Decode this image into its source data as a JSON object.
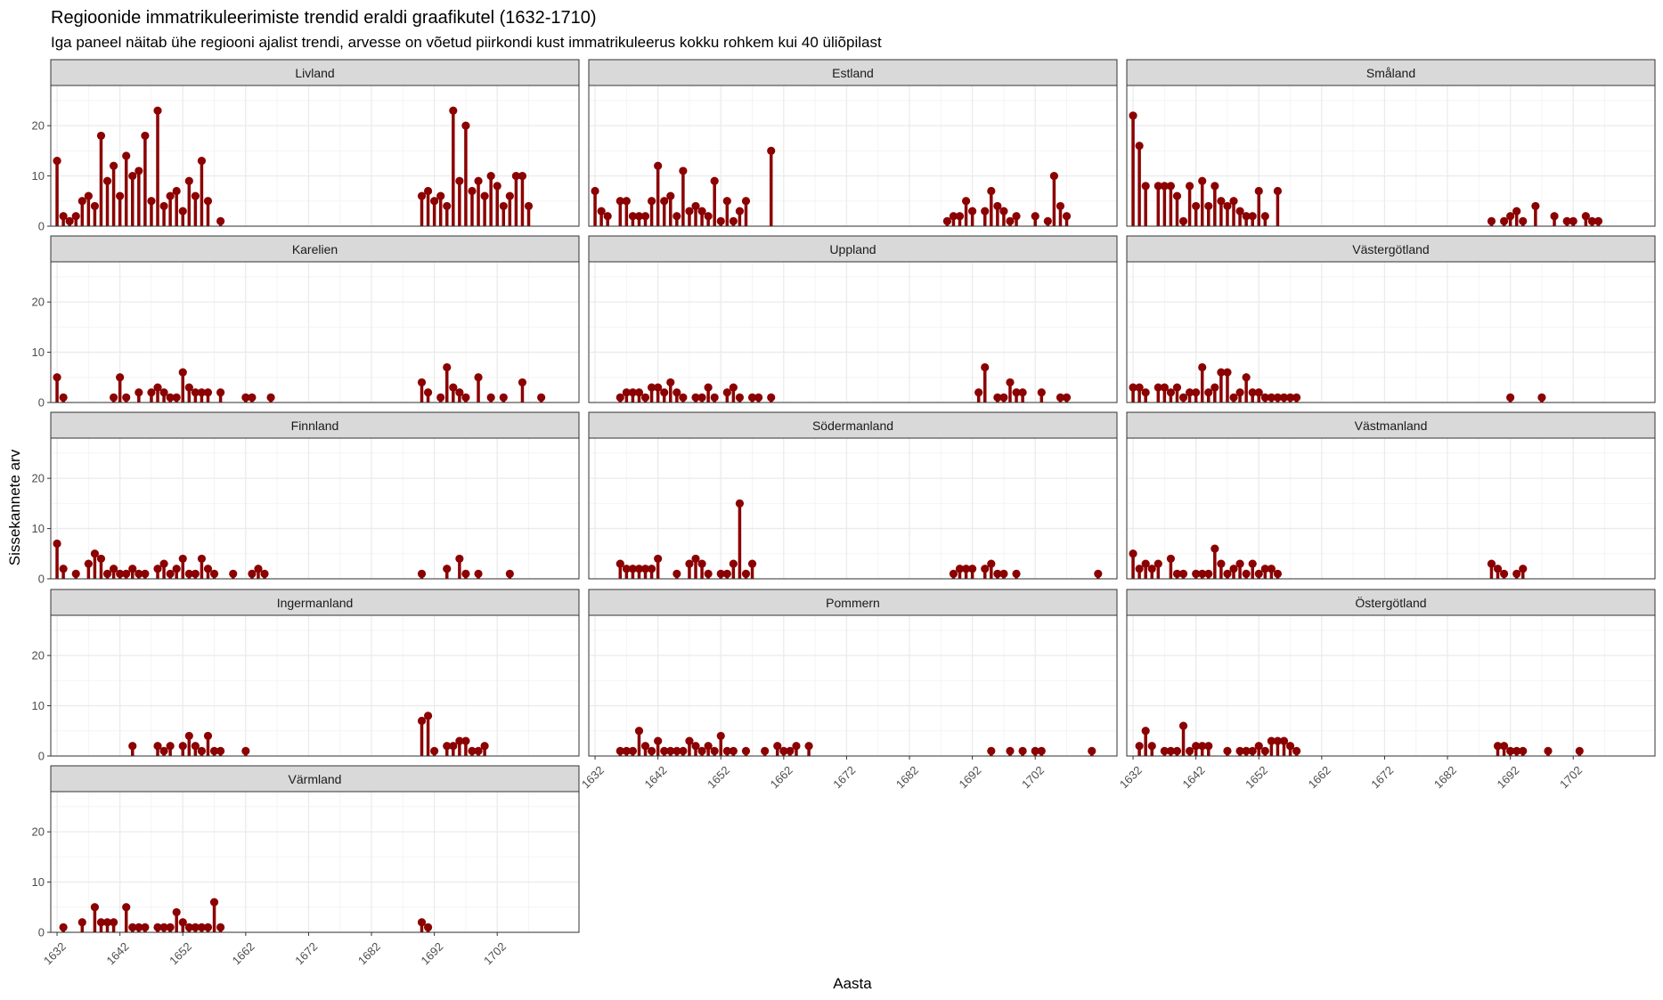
{
  "chart_data": {
    "type": "lollipop",
    "title": "Regioonide immatrikuleerimiste trendid eraldi graafikutel (1632-1710)",
    "subtitle": "Iga paneel näitab ühe regiooni ajalist trendi, arvesse on võetud piirkondi kust immatrikuleerus kokku rohkem kui 40 üliõpilast",
    "xlabel": "Aasta",
    "ylabel": "Sissekannete arv",
    "xlim": [
      1631,
      1715
    ],
    "ylim": [
      0,
      28
    ],
    "x_ticks": [
      "1632",
      "1642",
      "1652",
      "1662",
      "1672",
      "1682",
      "1692",
      "1702"
    ],
    "y_ticks": [
      "0",
      "10",
      "20"
    ],
    "grid": true,
    "colors": {
      "mark": "#8b0000",
      "strip_fill": "#d9d9d9",
      "panel_border": "#333333",
      "grid_major": "#ebebeb",
      "grid_minor": "#f4f4f4"
    },
    "panels": [
      {
        "name": "Livland",
        "x": [
          1632,
          1633,
          1634,
          1635,
          1636,
          1637,
          1638,
          1639,
          1640,
          1641,
          1642,
          1643,
          1644,
          1645,
          1646,
          1647,
          1648,
          1649,
          1650,
          1651,
          1652,
          1653,
          1654,
          1655,
          1656,
          1658,
          1690,
          1691,
          1692,
          1693,
          1694,
          1695,
          1696,
          1697,
          1698,
          1699,
          1700,
          1701,
          1702,
          1703,
          1704,
          1705,
          1706,
          1707
        ],
        "y": [
          13,
          2,
          1,
          2,
          5,
          6,
          4,
          18,
          9,
          12,
          6,
          14,
          10,
          11,
          18,
          5,
          23,
          4,
          6,
          7,
          3,
          9,
          6,
          13,
          5,
          1,
          6,
          7,
          5,
          6,
          4,
          23,
          9,
          20,
          7,
          9,
          6,
          10,
          8,
          4,
          6,
          10,
          10,
          4
        ]
      },
      {
        "name": "Estland",
        "x": [
          1632,
          1633,
          1634,
          1636,
          1637,
          1638,
          1639,
          1640,
          1641,
          1642,
          1643,
          1644,
          1645,
          1646,
          1647,
          1648,
          1649,
          1650,
          1651,
          1652,
          1653,
          1654,
          1655,
          1656,
          1660,
          1688,
          1689,
          1690,
          1691,
          1692,
          1694,
          1695,
          1696,
          1697,
          1698,
          1699,
          1702,
          1704,
          1705,
          1706,
          1707
        ],
        "y": [
          7,
          3,
          2,
          5,
          5,
          2,
          2,
          2,
          5,
          12,
          5,
          6,
          2,
          11,
          3,
          4,
          3,
          2,
          9,
          1,
          5,
          1,
          3,
          5,
          15,
          1,
          2,
          2,
          5,
          3,
          3,
          7,
          4,
          3,
          1,
          2,
          2,
          1,
          10,
          4,
          2
        ]
      },
      {
        "name": "Småland",
        "x": [
          1632,
          1633,
          1634,
          1636,
          1637,
          1638,
          1639,
          1640,
          1641,
          1642,
          1643,
          1644,
          1645,
          1646,
          1647,
          1648,
          1649,
          1650,
          1651,
          1652,
          1653,
          1655,
          1689,
          1691,
          1692,
          1693,
          1694,
          1696,
          1699,
          1701,
          1702,
          1704,
          1705,
          1706
        ],
        "y": [
          22,
          16,
          8,
          8,
          8,
          8,
          6,
          1,
          8,
          4,
          9,
          4,
          8,
          5,
          4,
          5,
          3,
          2,
          2,
          7,
          2,
          7,
          1,
          1,
          2,
          3,
          1,
          4,
          2,
          1,
          1,
          2,
          1,
          1
        ]
      },
      {
        "name": "Karelien",
        "x": [
          1632,
          1633,
          1641,
          1642,
          1643,
          1645,
          1647,
          1648,
          1649,
          1650,
          1651,
          1652,
          1653,
          1654,
          1655,
          1656,
          1658,
          1662,
          1663,
          1666,
          1690,
          1691,
          1693,
          1694,
          1695,
          1696,
          1697,
          1699,
          1701,
          1703,
          1706,
          1709
        ],
        "y": [
          5,
          1,
          1,
          5,
          1,
          2,
          2,
          3,
          2,
          1,
          1,
          6,
          3,
          2,
          2,
          2,
          2,
          1,
          1,
          1,
          4,
          2,
          1,
          7,
          3,
          2,
          1,
          5,
          1,
          1,
          4,
          1
        ]
      },
      {
        "name": "Uppland",
        "x": [
          1636,
          1637,
          1638,
          1639,
          1640,
          1641,
          1642,
          1643,
          1644,
          1645,
          1646,
          1648,
          1649,
          1650,
          1651,
          1653,
          1654,
          1655,
          1657,
          1658,
          1660,
          1693,
          1694,
          1696,
          1697,
          1698,
          1699,
          1700,
          1703,
          1706,
          1707
        ],
        "y": [
          1,
          2,
          2,
          2,
          1,
          3,
          3,
          2,
          4,
          2,
          1,
          1,
          1,
          3,
          1,
          2,
          3,
          1,
          1,
          1,
          1,
          2,
          7,
          1,
          1,
          4,
          2,
          2,
          2,
          1,
          1
        ]
      },
      {
        "name": "Västergötland",
        "x": [
          1632,
          1633,
          1634,
          1636,
          1637,
          1638,
          1639,
          1640,
          1641,
          1642,
          1643,
          1644,
          1645,
          1646,
          1647,
          1648,
          1649,
          1650,
          1651,
          1652,
          1653,
          1654,
          1655,
          1656,
          1657,
          1658,
          1692,
          1697
        ],
        "y": [
          3,
          3,
          2,
          3,
          3,
          2,
          3,
          1,
          2,
          2,
          7,
          2,
          3,
          6,
          6,
          1,
          2,
          5,
          2,
          2,
          1,
          1,
          1,
          1,
          1,
          1,
          1,
          1
        ]
      },
      {
        "name": "Finnland",
        "x": [
          1632,
          1633,
          1635,
          1637,
          1638,
          1639,
          1640,
          1641,
          1642,
          1643,
          1644,
          1645,
          1646,
          1648,
          1649,
          1650,
          1651,
          1652,
          1653,
          1654,
          1655,
          1656,
          1657,
          1660,
          1663,
          1664,
          1665,
          1690,
          1694,
          1696,
          1697,
          1699,
          1704
        ],
        "y": [
          7,
          2,
          1,
          3,
          5,
          4,
          1,
          2,
          1,
          1,
          2,
          1,
          1,
          2,
          3,
          1,
          2,
          4,
          1,
          1,
          4,
          2,
          1,
          1,
          1,
          2,
          1,
          1,
          2,
          4,
          1,
          1,
          1
        ]
      },
      {
        "name": "Södermanland",
        "x": [
          1636,
          1637,
          1638,
          1639,
          1640,
          1641,
          1642,
          1645,
          1647,
          1648,
          1649,
          1650,
          1652,
          1653,
          1654,
          1655,
          1656,
          1657,
          1689,
          1690,
          1691,
          1692,
          1694,
          1695,
          1696,
          1697,
          1699,
          1712
        ],
        "y": [
          3,
          2,
          2,
          2,
          2,
          2,
          4,
          1,
          3,
          4,
          3,
          1,
          1,
          1,
          3,
          15,
          1,
          3,
          1,
          2,
          2,
          2,
          2,
          3,
          1,
          1,
          1,
          1
        ]
      },
      {
        "name": "Västmanland",
        "x": [
          1632,
          1633,
          1634,
          1635,
          1636,
          1638,
          1639,
          1640,
          1642,
          1643,
          1644,
          1645,
          1646,
          1647,
          1648,
          1649,
          1650,
          1651,
          1652,
          1653,
          1654,
          1655,
          1689,
          1690,
          1691,
          1693,
          1694
        ],
        "y": [
          5,
          2,
          3,
          2,
          3,
          4,
          1,
          1,
          1,
          1,
          1,
          6,
          3,
          1,
          2,
          3,
          1,
          3,
          1,
          2,
          2,
          1,
          3,
          2,
          1,
          1,
          2
        ]
      },
      {
        "name": "Ingermanland",
        "x": [
          1644,
          1648,
          1649,
          1650,
          1652,
          1653,
          1654,
          1655,
          1656,
          1657,
          1658,
          1662,
          1690,
          1691,
          1692,
          1694,
          1695,
          1696,
          1697,
          1698,
          1699,
          1700
        ],
        "y": [
          2,
          2,
          1,
          2,
          2,
          4,
          2,
          1,
          4,
          1,
          1,
          1,
          7,
          8,
          1,
          2,
          2,
          3,
          3,
          1,
          1,
          2
        ]
      },
      {
        "name": "Pommern",
        "x": [
          1636,
          1637,
          1638,
          1639,
          1640,
          1641,
          1642,
          1643,
          1644,
          1645,
          1646,
          1647,
          1648,
          1649,
          1650,
          1651,
          1652,
          1653,
          1654,
          1656,
          1659,
          1661,
          1662,
          1663,
          1664,
          1666,
          1695,
          1698,
          1700,
          1702,
          1703,
          1711
        ],
        "y": [
          1,
          1,
          1,
          5,
          2,
          1,
          3,
          1,
          1,
          1,
          1,
          3,
          2,
          1,
          2,
          1,
          4,
          1,
          1,
          1,
          1,
          2,
          1,
          1,
          2,
          2,
          1,
          1,
          1,
          1,
          1,
          1
        ]
      },
      {
        "name": "Östergötland",
        "x": [
          1633,
          1634,
          1635,
          1637,
          1638,
          1639,
          1640,
          1641,
          1642,
          1643,
          1644,
          1647,
          1649,
          1650,
          1651,
          1652,
          1653,
          1654,
          1655,
          1656,
          1657,
          1658,
          1690,
          1691,
          1692,
          1693,
          1694,
          1698,
          1703
        ],
        "y": [
          2,
          5,
          2,
          1,
          1,
          1,
          6,
          1,
          2,
          2,
          2,
          1,
          1,
          1,
          1,
          2,
          1,
          3,
          3,
          3,
          2,
          1,
          2,
          2,
          1,
          1,
          1,
          1,
          1
        ]
      },
      {
        "name": "Värmland",
        "x": [
          1633,
          1636,
          1638,
          1639,
          1640,
          1641,
          1643,
          1644,
          1645,
          1646,
          1648,
          1649,
          1650,
          1651,
          1652,
          1653,
          1654,
          1655,
          1656,
          1657,
          1658,
          1690,
          1691
        ],
        "y": [
          1,
          2,
          5,
          2,
          2,
          2,
          5,
          1,
          1,
          1,
          1,
          1,
          1,
          4,
          2,
          1,
          1,
          1,
          1,
          6,
          1,
          2,
          1
        ]
      }
    ]
  }
}
